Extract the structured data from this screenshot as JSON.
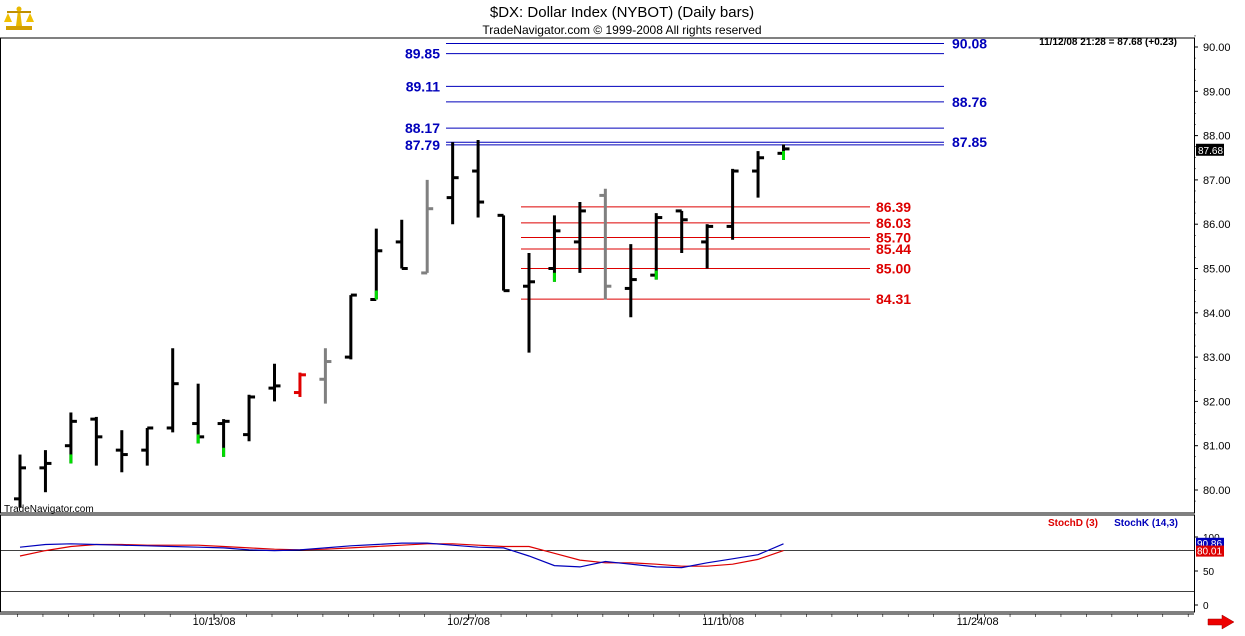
{
  "header": {
    "title": "$DX:  Dollar Index (NYBOT)  (Daily bars)",
    "copyright": "TradeNavigator.com © 1999-2008 All rights reserved",
    "quote": "11/12/08 21:28 = 87.68 (+0.23)",
    "watermark": "TradeNavigator.com",
    "logo_icon": "scale-logo-icon",
    "scroll_icon": "red-right-arrow-icon"
  },
  "colors": {
    "bar": "#000000",
    "bar_gray": "#808080",
    "bar_red": "#e00000",
    "tick_green": "#00dd00",
    "level_blue": "#0000bb",
    "level_red": "#dd0000",
    "stoch_d": "#dd0000",
    "stoch_k": "#0000bb"
  },
  "chart_data": [
    {
      "type": "ohlc",
      "ylim": [
        79.7,
        90.3
      ],
      "yticks": [
        "80.00",
        "81.00",
        "82.00",
        "83.00",
        "84.00",
        "85.00",
        "86.00",
        "87.00",
        "88.00",
        "89.00",
        "90.00"
      ],
      "ytick_values": [
        80,
        81,
        82,
        83,
        84,
        85,
        86,
        87,
        88,
        89,
        90
      ],
      "xticks": [
        "10/13/08",
        "10/27/08",
        "11/10/08",
        "11/24/08"
      ],
      "xtick_index": [
        8,
        18,
        28,
        38
      ],
      "last_price_label": "87.68",
      "last_price": 87.68,
      "bars": [
        {
          "o": 79.8,
          "h": 80.8,
          "l": 79.6,
          "c": 80.5
        },
        {
          "o": 80.5,
          "h": 80.9,
          "l": 79.95,
          "c": 80.6
        },
        {
          "o": 81.0,
          "h": 81.75,
          "l": 80.6,
          "c": 81.55,
          "tick": "green"
        },
        {
          "o": 81.6,
          "h": 81.65,
          "l": 80.55,
          "c": 81.2
        },
        {
          "o": 80.9,
          "h": 81.35,
          "l": 80.4,
          "c": 80.8
        },
        {
          "o": 80.9,
          "h": 81.4,
          "l": 80.55,
          "c": 81.4
        },
        {
          "o": 81.4,
          "h": 83.2,
          "l": 81.3,
          "c": 82.4
        },
        {
          "o": 81.5,
          "h": 82.4,
          "l": 81.05,
          "c": 81.2,
          "tick": "green"
        },
        {
          "o": 81.5,
          "h": 81.6,
          "l": 80.75,
          "c": 81.55,
          "tick": "green"
        },
        {
          "o": 81.25,
          "h": 82.15,
          "l": 81.1,
          "c": 82.1
        },
        {
          "o": 82.3,
          "h": 82.85,
          "l": 82.0,
          "c": 82.35
        },
        {
          "o": 82.2,
          "h": 82.65,
          "l": 82.1,
          "c": 82.6,
          "color": "red"
        },
        {
          "o": 82.5,
          "h": 83.2,
          "l": 81.95,
          "c": 82.9,
          "color": "gray"
        },
        {
          "o": 83.0,
          "h": 84.4,
          "l": 82.95,
          "c": 84.4
        },
        {
          "o": 84.3,
          "h": 85.9,
          "l": 84.3,
          "c": 85.4,
          "tick": "green"
        },
        {
          "o": 85.6,
          "h": 86.1,
          "l": 85.0,
          "c": 85.0
        },
        {
          "o": 84.9,
          "h": 87.0,
          "l": 84.9,
          "c": 86.35,
          "color": "gray"
        },
        {
          "o": 86.6,
          "h": 87.85,
          "l": 86.0,
          "c": 87.05
        },
        {
          "o": 87.2,
          "h": 87.9,
          "l": 86.15,
          "c": 86.5
        },
        {
          "o": 86.2,
          "h": 86.2,
          "l": 84.5,
          "c": 84.5
        },
        {
          "o": 84.6,
          "h": 85.35,
          "l": 83.1,
          "c": 84.7
        },
        {
          "o": 85.0,
          "h": 86.2,
          "l": 84.7,
          "c": 85.85,
          "tick": "green"
        },
        {
          "o": 85.6,
          "h": 86.5,
          "l": 84.9,
          "c": 86.3
        },
        {
          "o": 86.65,
          "h": 86.8,
          "l": 84.3,
          "c": 84.6,
          "color": "gray"
        },
        {
          "o": 84.55,
          "h": 85.55,
          "l": 83.9,
          "c": 84.75
        },
        {
          "o": 84.85,
          "h": 86.25,
          "l": 84.75,
          "c": 86.15,
          "tick": "green"
        },
        {
          "o": 86.3,
          "h": 86.3,
          "l": 85.35,
          "c": 86.1
        },
        {
          "o": 85.6,
          "h": 86.0,
          "l": 85.0,
          "c": 85.95
        },
        {
          "o": 85.95,
          "h": 87.25,
          "l": 85.65,
          "c": 87.2
        },
        {
          "o": 87.2,
          "h": 87.65,
          "l": 86.6,
          "c": 87.5
        },
        {
          "o": 87.6,
          "h": 87.8,
          "l": 87.45,
          "c": 87.7,
          "tick": "green"
        }
      ],
      "levels": [
        {
          "value": 90.08,
          "label": "90.08",
          "color": "blue",
          "side": "right"
        },
        {
          "value": 89.85,
          "label": "89.85",
          "color": "blue",
          "side": "left"
        },
        {
          "value": 89.11,
          "label": "89.11",
          "color": "blue",
          "side": "left"
        },
        {
          "value": 88.76,
          "label": "88.76",
          "color": "blue",
          "side": "right"
        },
        {
          "value": 88.17,
          "label": "88.17",
          "color": "blue",
          "side": "left"
        },
        {
          "value": 87.85,
          "label": "87.85",
          "color": "blue",
          "side": "right"
        },
        {
          "value": 87.79,
          "label": "87.79",
          "color": "blue",
          "side": "left"
        },
        {
          "value": 86.39,
          "label": "86.39",
          "color": "red",
          "side": "right"
        },
        {
          "value": 86.03,
          "label": "86.03",
          "color": "red",
          "side": "right"
        },
        {
          "value": 85.7,
          "label": "85.70",
          "color": "red",
          "side": "right"
        },
        {
          "value": 85.44,
          "label": "85.44",
          "color": "red",
          "side": "right"
        },
        {
          "value": 85.0,
          "label": "85.00",
          "color": "red",
          "side": "right"
        },
        {
          "value": 84.31,
          "label": "84.31",
          "color": "red",
          "side": "right"
        }
      ]
    },
    {
      "type": "line",
      "legend": [
        "StochD (3)",
        "StochK (14,3)"
      ],
      "ylim": [
        -10,
        110
      ],
      "yticks": [
        "100",
        "50",
        "0"
      ],
      "ytick_values": [
        100,
        50,
        0
      ],
      "reference_lines": [
        80,
        20
      ],
      "stoch_k_label": "90.86",
      "stoch_d_label": "80.01",
      "series": [
        {
          "name": "StochD (3)",
          "values": [
            72,
            80,
            86,
            89,
            89,
            88,
            88,
            88,
            86,
            84,
            82,
            81,
            82,
            84,
            86,
            88,
            90,
            90,
            88,
            86,
            86,
            76,
            66,
            62,
            62,
            60,
            57,
            57,
            60,
            67,
            80
          ]
        },
        {
          "name": "StochK (14,3)",
          "values": [
            85,
            89,
            90,
            89,
            88,
            87,
            86,
            85,
            84,
            81,
            80,
            81,
            84,
            87,
            89,
            91,
            91,
            88,
            85,
            84,
            72,
            58,
            56,
            64,
            60,
            56,
            55,
            62,
            68,
            74,
            90
          ]
        }
      ]
    }
  ]
}
